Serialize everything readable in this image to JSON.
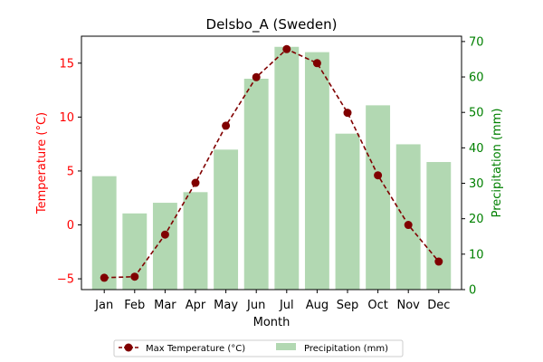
{
  "chart_data": {
    "type": "bar+line",
    "title": "Delsbo_A (Sweden)",
    "xlabel": "Month",
    "categories": [
      "Jan",
      "Feb",
      "Mar",
      "Apr",
      "May",
      "Jun",
      "Jul",
      "Aug",
      "Sep",
      "Oct",
      "Nov",
      "Dec"
    ],
    "left_axis": {
      "label": "Temperature (°C)",
      "color": "#ff0000",
      "ylim": [
        -6,
        17.5
      ],
      "ticks": [
        -5,
        0,
        5,
        10,
        15
      ]
    },
    "right_axis": {
      "label": "Precipitation (mm)",
      "color": "#008000",
      "ylim": [
        0,
        71.5
      ],
      "ticks": [
        0,
        10,
        20,
        30,
        40,
        50,
        60,
        70
      ]
    },
    "series": [
      {
        "name": "Max Temperature (°C)",
        "kind": "line",
        "axis": "left",
        "color": "#800000",
        "style": "dashed",
        "marker": "circle",
        "values": [
          -4.9,
          -4.8,
          -0.9,
          3.9,
          9.2,
          13.7,
          16.3,
          15.0,
          10.4,
          4.6,
          0.0,
          -3.4
        ]
      },
      {
        "name": "Precipitation (mm)",
        "kind": "bar",
        "axis": "right",
        "color": "#b2d8b2",
        "values": [
          32,
          21.5,
          24.5,
          27.5,
          39.5,
          59.5,
          68.5,
          67,
          44,
          52,
          41,
          36
        ]
      }
    ],
    "legend": {
      "position": "bottom-center",
      "columns": 2
    },
    "grid": false
  }
}
